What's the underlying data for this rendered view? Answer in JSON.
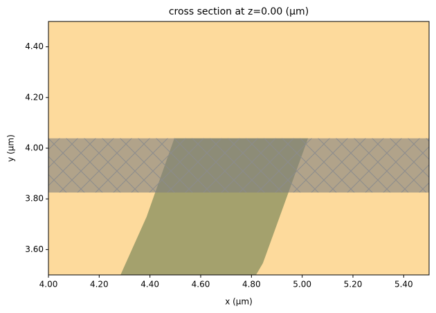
{
  "chart_data": {
    "type": "cross_section",
    "title": "cross section at z=0.00 (μm)",
    "xlabel": "x (μm)",
    "ylabel": "y (μm)",
    "xlim": [
      4.0,
      5.5
    ],
    "ylim": [
      3.5,
      4.5
    ],
    "xticks": [
      {
        "value": 4.0,
        "label": "4.00"
      },
      {
        "value": 4.2,
        "label": "4.20"
      },
      {
        "value": 4.4,
        "label": "4.40"
      },
      {
        "value": 4.6,
        "label": "4.60"
      },
      {
        "value": 4.8,
        "label": "4.80"
      },
      {
        "value": 5.0,
        "label": "5.00"
      },
      {
        "value": 5.2,
        "label": "5.20"
      },
      {
        "value": 5.4,
        "label": "5.40"
      }
    ],
    "yticks": [
      {
        "value": 3.6,
        "label": "3.60"
      },
      {
        "value": 3.8,
        "label": "3.80"
      },
      {
        "value": 4.0,
        "label": "4.00"
      },
      {
        "value": 4.2,
        "label": "4.20"
      },
      {
        "value": 4.4,
        "label": "4.40"
      }
    ],
    "background": "#fdda9c",
    "shapes": [
      {
        "color": "#a4a16d",
        "hatch": false,
        "x": [
          4.284,
          4.387,
          4.496,
          5.023,
          4.845,
          4.818
        ],
        "y": [
          3.5,
          3.73,
          4.039,
          4.039,
          3.546,
          3.5
        ]
      },
      {
        "color": "#7f7f7f",
        "hatch": true,
        "x": [
          4.0,
          5.5,
          5.5,
          4.0
        ],
        "y": [
          3.825,
          3.825,
          4.039,
          4.039
        ]
      }
    ]
  }
}
